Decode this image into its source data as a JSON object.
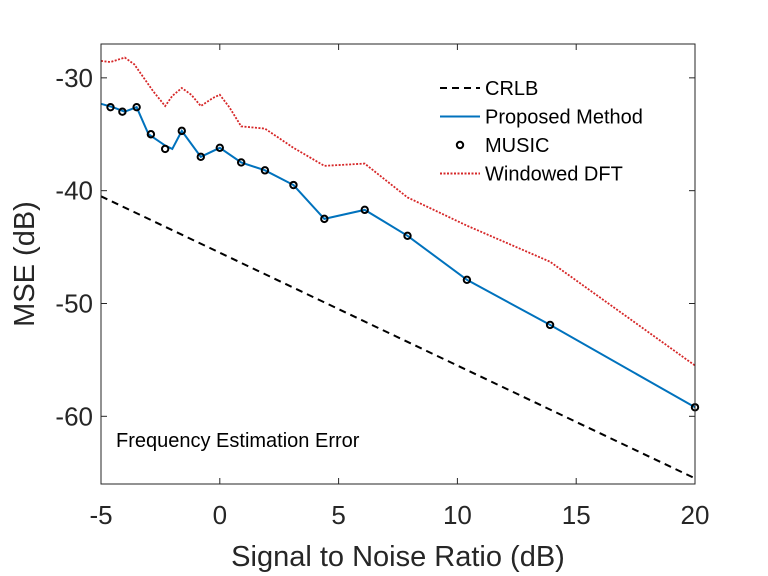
{
  "chart_data": {
    "type": "line",
    "title": "",
    "xlabel": "Signal to Noise Ratio (dB)",
    "ylabel": "MSE (dB)",
    "xlim": [
      -5,
      20
    ],
    "ylim": [
      -66,
      -27
    ],
    "xticks": [
      -5,
      0,
      5,
      10,
      15,
      20
    ],
    "yticks": [
      -30,
      -40,
      -50,
      -60
    ],
    "grid": false,
    "legend_position": "top-right",
    "annotation": "Frequency Estimation Error",
    "series": [
      {
        "name": "CRLB",
        "style": "dashed",
        "color": "#000000",
        "x": [
          -5,
          20
        ],
        "y": [
          -40.5,
          -65.5
        ]
      },
      {
        "name": "Proposed Method",
        "style": "solid",
        "color": "#0072bd",
        "x": [
          -5,
          -4.5,
          -4,
          -3.5,
          -3,
          -2.3,
          -2,
          -1.6,
          -0.8,
          0,
          0.9,
          1.9,
          3.1,
          4.4,
          6.1,
          7.9,
          10.4,
          13.9,
          20
        ],
        "y": [
          -32.3,
          -32.6,
          -33.0,
          -32.6,
          -35.0,
          -36.0,
          -36.3,
          -34.7,
          -37.0,
          -36.2,
          -37.5,
          -38.2,
          -39.5,
          -42.5,
          -41.7,
          -44.0,
          -47.9,
          -51.9,
          -59.2
        ]
      },
      {
        "name": "MUSIC",
        "style": "markers",
        "color": "#000000",
        "x": [
          -4.6,
          -4.1,
          -3.5,
          -2.9,
          -2.3,
          -1.6,
          -0.8,
          0,
          0.9,
          1.9,
          3.1,
          4.4,
          6.1,
          7.9,
          10.4,
          13.9,
          20
        ],
        "y": [
          -32.6,
          -33.0,
          -32.6,
          -35.0,
          -36.3,
          -34.7,
          -37.0,
          -36.2,
          -37.5,
          -38.2,
          -39.5,
          -42.5,
          -41.7,
          -44.0,
          -47.9,
          -51.9,
          -59.2
        ]
      },
      {
        "name": "Windowed DFT",
        "style": "dotted",
        "color": "#d62728",
        "x": [
          -5,
          -4.6,
          -4.3,
          -4.0,
          -3.6,
          -3.2,
          -2.8,
          -2.3,
          -2.0,
          -1.6,
          -1.2,
          -0.8,
          -0.3,
          0,
          0.4,
          0.9,
          1.9,
          3.1,
          4.4,
          6.1,
          7.9,
          10.4,
          13.9,
          20
        ],
        "y": [
          -28.5,
          -28.6,
          -28.4,
          -28.2,
          -28.8,
          -30.0,
          -31.2,
          -32.5,
          -31.6,
          -30.9,
          -31.5,
          -32.5,
          -31.8,
          -31.5,
          -32.6,
          -34.3,
          -34.5,
          -36.2,
          -37.8,
          -37.6,
          -40.6,
          -43.1,
          -46.3,
          -55.5
        ]
      }
    ]
  }
}
